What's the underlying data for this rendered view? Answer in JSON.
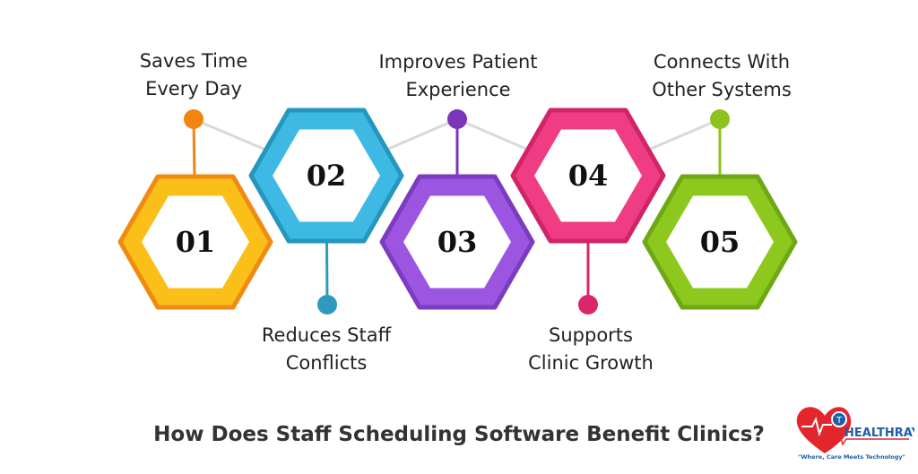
{
  "title": "How Does Staff Scheduling Software Benefit Clinics?",
  "steps": [
    {
      "number": "01",
      "line1": "Saves Time",
      "line2": "Every Day",
      "color": "#FBBF1A",
      "stroke": "#F08A12",
      "dot": "#F2850F"
    },
    {
      "number": "02",
      "line1": "Reduces Staff",
      "line2": "Conflicts",
      "color": "#3DB9E4",
      "stroke": "#2596BE",
      "dot": "#2E9BBE"
    },
    {
      "number": "03",
      "line1": "Improves Patient",
      "line2": "Experience",
      "color": "#9B55E0",
      "stroke": "#7B3CC0",
      "dot": "#7B35B8"
    },
    {
      "number": "04",
      "line1": "Supports",
      "line2": "Clinic Growth",
      "color": "#F03C82",
      "stroke": "#D02468",
      "dot": "#D8276A"
    },
    {
      "number": "05",
      "line1": "Connects With",
      "line2": "Other Systems",
      "color": "#8CC81E",
      "stroke": "#6EA814",
      "dot": "#8CC31E"
    }
  ],
  "logo": {
    "name": "HEALTHRAY",
    "tagline": "\"Where, Care Meets Technology\""
  }
}
